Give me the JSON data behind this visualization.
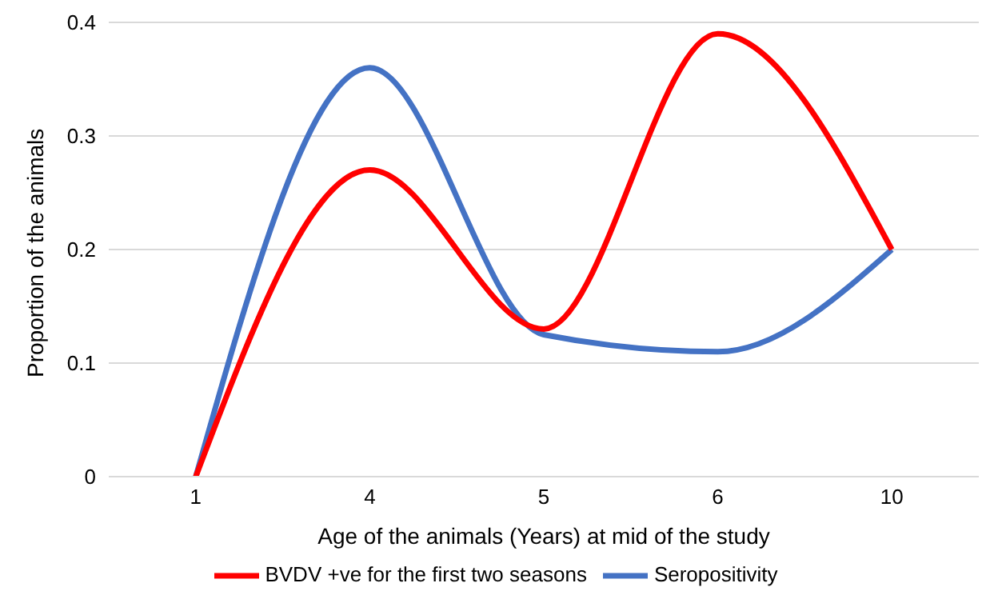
{
  "chart_data": {
    "type": "line",
    "xlabel": "Age of the animals (Years) at mid of the study",
    "ylabel": "Proportion of the animals",
    "categories": [
      "1",
      "4",
      "5",
      "6",
      "10"
    ],
    "series": [
      {
        "name": "Seropositivity",
        "color": "#4472c4",
        "values": [
          0,
          0.36,
          0.125,
          0.11,
          0.2
        ]
      },
      {
        "name": "BVDV +ve for the first two seasons",
        "color": "#ff0000",
        "values": [
          0,
          0.27,
          0.13,
          0.39,
          0.2
        ]
      }
    ],
    "ylim": [
      0,
      0.4
    ],
    "yticks": [
      0,
      0.1,
      0.2,
      0.3,
      0.4
    ],
    "grid": "y",
    "legend": "bottom",
    "marker": "none",
    "line_style": "solid"
  }
}
